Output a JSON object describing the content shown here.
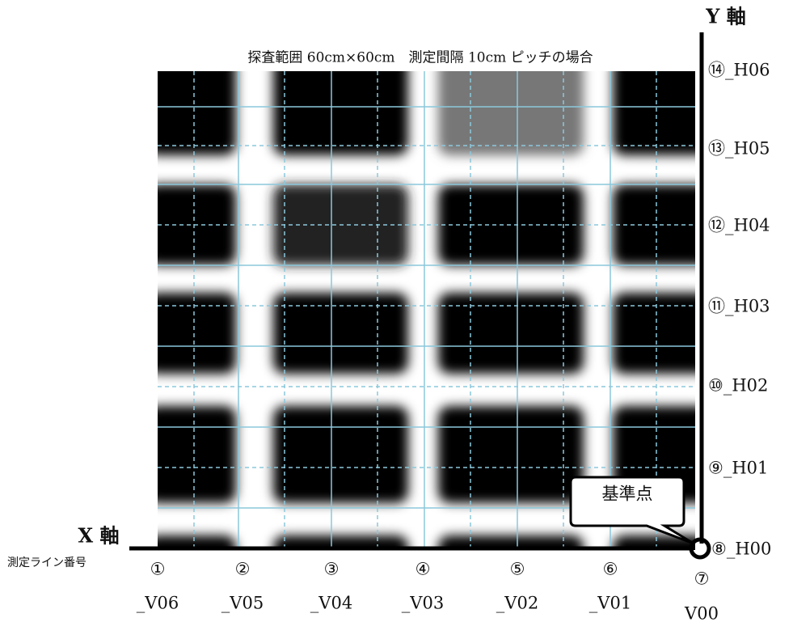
{
  "title": "探査範囲 60cm×60cm　測定間隔 10cm ピッチの場合",
  "axes": {
    "y_label": "Y 軸",
    "x_label": "X 軸",
    "x_sublabel": "測定ライン番号"
  },
  "y_lines": [
    "⑭_H06",
    "⑬_H05",
    "⑫_H04",
    "⑪_H03",
    "⑩_H02",
    "⑨_H01",
    "⑧_H00"
  ],
  "x_lines": [
    {
      "number": "①",
      "label": "_V06"
    },
    {
      "number": "②",
      "label": "_V05"
    },
    {
      "number": "③",
      "label": "_V04"
    },
    {
      "number": "④",
      "label": "_V03"
    },
    {
      "number": "⑤",
      "label": "_V02"
    },
    {
      "number": "⑥",
      "label": "_V01"
    },
    {
      "number": "⑦",
      "label": "V00"
    }
  ],
  "callout": "基準点"
}
